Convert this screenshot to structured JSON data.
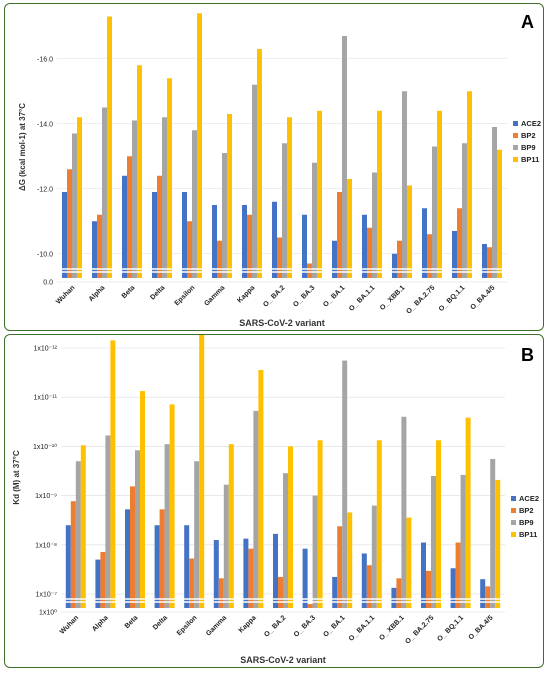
{
  "chart_data": [
    {
      "type": "bar",
      "panel_label": "A",
      "title": "",
      "xlabel": "SARS-CoV-2 variant",
      "ylabel": "ΔG (kcal mol-1) at 37°C",
      "y_inverted": true,
      "y_axis_break": true,
      "ylim": [
        -9.5,
        -16.8
      ],
      "y_ticks": [
        {
          "v": -10,
          "label": "-10.0"
        },
        {
          "v": -12,
          "label": "-12.0"
        },
        {
          "v": -14,
          "label": "-14.0"
        },
        {
          "v": -16,
          "label": "-16.0"
        }
      ],
      "y_zero_label": "0.0",
      "grid": true,
      "legend_position": "right",
      "categories": [
        "Wuhan",
        "Alpha",
        "Beta",
        "Delta",
        "Epsilon",
        "Gamma",
        "Kappa",
        "O_ BA.2",
        "O_ BA.3",
        "O_ BA.1",
        "O_ BA.1.1",
        "O_ XBB.1",
        "O_ BA.2.75",
        "O_ BQ.1.1",
        "O_BA.4/5"
      ],
      "series": [
        {
          "name": "ACE2",
          "color": "#4472c4",
          "values": [
            -11.9,
            -11.0,
            -12.4,
            -11.9,
            -11.9,
            -11.5,
            -11.5,
            -11.6,
            -11.2,
            -10.4,
            -11.2,
            -10.0,
            -11.4,
            -10.7,
            -10.3
          ]
        },
        {
          "name": "BP2",
          "color": "#ed7d31",
          "values": [
            -12.6,
            -11.2,
            -13.0,
            -12.4,
            -11.0,
            -10.4,
            -11.2,
            -10.5,
            -9.7,
            -11.9,
            -10.8,
            -10.4,
            -10.6,
            -11.4,
            -10.2
          ]
        },
        {
          "name": "BP9",
          "color": "#a5a5a5",
          "values": [
            -13.7,
            -14.5,
            -14.1,
            -14.2,
            -13.8,
            -13.1,
            -15.2,
            -13.4,
            -12.8,
            -16.7,
            -12.5,
            -15.0,
            -13.3,
            -13.4,
            -13.9
          ]
        },
        {
          "name": "BP11",
          "color": "#ffc000",
          "values": [
            -14.2,
            -17.3,
            -15.8,
            -15.4,
            -17.4,
            -14.3,
            -16.3,
            -14.2,
            -14.4,
            -12.3,
            -14.4,
            -12.1,
            -14.4,
            -15.0,
            -13.2
          ]
        }
      ]
    },
    {
      "type": "bar",
      "panel_label": "B",
      "title": "",
      "xlabel": "SARS-CoV-2 variant",
      "ylabel": "Kd (M) at 37°C",
      "y_scale": "log",
      "y_inverted": true,
      "y_axis_break": true,
      "y_tick_exponents": [
        -7,
        -8,
        -9,
        -10,
        -11,
        -12
      ],
      "y_zero_label": "1x10⁰",
      "grid": true,
      "legend_position": "right",
      "categories": [
        "Wuhan",
        "Alpha",
        "Beta",
        "Delta",
        "Epsilon",
        "Gamma",
        "Kappa",
        "O_ BA.2",
        "O_ BA.3",
        "O_ BA.1",
        "O_ BA.1.1",
        "O_ XBB.1",
        "O_ BA.2.75",
        "O_ BQ.1.1",
        "O_BA.4/5"
      ],
      "series": [
        {
          "name": "ACE2",
          "color": "#4472c4",
          "values": [
            4e-09,
            2e-08,
            1.9e-09,
            4e-09,
            4e-09,
            8e-09,
            7.5e-09,
            6e-09,
            1.2e-08,
            4.5e-08,
            1.5e-08,
            7.5e-08,
            9e-09,
            3e-08,
            5e-08
          ]
        },
        {
          "name": "BP2",
          "color": "#ed7d31",
          "values": [
            1.3e-09,
            1.4e-08,
            6.5e-10,
            1.9e-09,
            1.9e-08,
            4.8e-08,
            1.2e-08,
            4.5e-08,
            1.6e-07,
            4.2e-09,
            2.6e-08,
            4.8e-08,
            3.4e-08,
            9e-09,
            7e-08
          ]
        },
        {
          "name": "BP9",
          "color": "#a5a5a5",
          "values": [
            2e-10,
            6e-11,
            1.2e-10,
            9e-11,
            2e-10,
            6e-10,
            1.9e-11,
            3.5e-10,
            1e-09,
            1.8e-12,
            1.6e-09,
            2.5e-11,
            4e-10,
            3.8e-10,
            1.8e-10
          ]
        },
        {
          "name": "BP11",
          "color": "#ffc000",
          "values": [
            9.5e-11,
            7e-13,
            7.5e-12,
            1.4e-11,
            5e-13,
            9e-11,
            2.8e-12,
            1e-10,
            7.5e-11,
            2.2e-09,
            7.5e-11,
            2.8e-09,
            7.5e-11,
            2.6e-11,
            4.8e-10
          ]
        }
      ]
    }
  ]
}
